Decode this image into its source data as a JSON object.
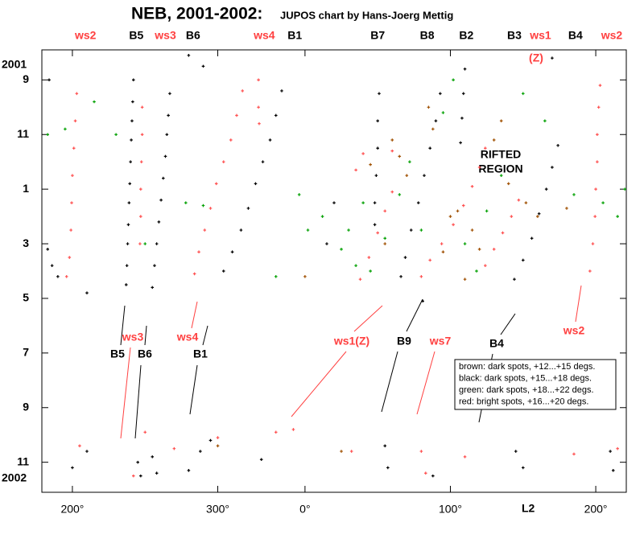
{
  "chart_data": {
    "type": "scatter",
    "title": "NEB, 2001-2002:",
    "subtitle": "JUPOS chart by Hans-Joerg Mettig",
    "x_label": "L2",
    "xlim": [
      179,
      581
    ],
    "xticks": [
      {
        "value": 200,
        "label": "200°"
      },
      {
        "value": 300,
        "label": "300°"
      },
      {
        "value": 360,
        "label": "0°"
      },
      {
        "value": 460,
        "label": "100°"
      },
      {
        "value": 560,
        "label": "200°"
      }
    ],
    "ylim": [
      24.1,
      7.9
    ],
    "yticks": [
      9,
      11,
      {
        "value": 13,
        "label": "1"
      },
      {
        "value": 15,
        "label": "3"
      },
      {
        "value": 17,
        "label": "5"
      },
      {
        "value": 19,
        "label": "7"
      },
      {
        "value": 21,
        "label": "9"
      },
      {
        "value": 23,
        "label": "11"
      }
    ],
    "year_labels": [
      {
        "value": 8.45,
        "label": "2001"
      },
      {
        "value": 23.6,
        "label": "2002"
      }
    ],
    "top_labels": [
      {
        "label": "ws2",
        "x": 209,
        "color": "#ff4040"
      },
      {
        "label": "B5",
        "x": 244,
        "color": "#000000"
      },
      {
        "label": "ws3",
        "x": 264,
        "color": "#ff4040"
      },
      {
        "label": "B6",
        "x": 283,
        "color": "#000000"
      },
      {
        "label": "ws4",
        "x": 332,
        "color": "#ff4040"
      },
      {
        "label": "B1",
        "x": 353,
        "color": "#000000"
      },
      {
        "label": "B7",
        "x": 410,
        "color": "#000000"
      },
      {
        "label": "B8",
        "x": 444,
        "color": "#000000"
      },
      {
        "label": "B2",
        "x": 471,
        "color": "#000000"
      },
      {
        "label": "B3",
        "x": 504,
        "color": "#000000"
      },
      {
        "label": "ws1",
        "x": 522,
        "color": "#ff4040"
      },
      {
        "label": "B4",
        "x": 546,
        "color": "#000000"
      },
      {
        "label": "ws2",
        "x": 571,
        "color": "#ff4040"
      }
    ],
    "top_note": {
      "label": "(Z)",
      "color": "#ff4040"
    },
    "region_label": [
      "RIFTED",
      "REGION"
    ],
    "annotations": [
      {
        "label": "ws3",
        "color": "#ff4040"
      },
      {
        "label": "B5",
        "color": "#000000"
      },
      {
        "label": "B6",
        "color": "#000000"
      },
      {
        "label": "ws4",
        "color": "#ff4040"
      },
      {
        "label": "B1",
        "color": "#000000"
      },
      {
        "label": "ws1(Z)",
        "color": "#ff4040"
      },
      {
        "label": "B9",
        "color": "#000000"
      },
      {
        "label": "ws7",
        "color": "#ff4040"
      },
      {
        "label": "B4",
        "color": "#000000"
      },
      {
        "label": "ws2",
        "color": "#ff4040"
      }
    ],
    "legend": "lower-right",
    "series": [
      {
        "name": "brown:  dark spots,  +12...+15 degs.",
        "color": "#a05000",
        "x": [
          420,
          425,
          430,
          445,
          448,
          460,
          465,
          475,
          480,
          490,
          495,
          500,
          512,
          520,
          405,
          415,
          360,
          540,
          455,
          470,
          300,
          385
        ],
        "y": [
          11.2,
          11.8,
          12.5,
          10,
          10.8,
          14,
          13.8,
          14.5,
          15.2,
          11.2,
          10.5,
          12.8,
          13.5,
          14,
          12.1,
          15,
          16.2,
          13.7,
          15.3,
          16.3,
          22.4,
          22.6
        ]
      },
      {
        "name": "black:   dark spots,  +15...+18 degs.",
        "color": "#000000",
        "x": [
          242,
          241.5,
          241,
          240.5,
          240,
          239.5,
          239,
          238.5,
          238,
          237.5,
          237,
          267,
          266,
          265,
          264,
          262.5,
          261,
          259.5,
          258,
          256.5,
          255,
          344,
          340,
          336,
          331,
          326,
          321,
          316,
          310,
          304,
          411,
          410,
          410,
          409,
          408,
          408,
          453,
          450,
          446,
          442,
          438,
          433,
          429,
          426,
          470,
          469,
          468,
          467,
          534,
          530,
          526,
          521,
          516,
          510,
          504,
          441,
          183,
          186,
          190,
          210,
          375,
          380,
          200,
          210,
          245,
          247,
          255,
          258,
          280,
          288,
          295,
          330,
          415,
          417,
          448,
          505,
          510,
          570,
          572,
          184,
          290,
          280,
          530
        ],
        "y": [
          9,
          9.8,
          10.5,
          11.2,
          12,
          12.8,
          13.5,
          14.3,
          15,
          15.8,
          16.5,
          9.5,
          10.3,
          11,
          11.8,
          12.6,
          13.4,
          14.2,
          15,
          15.8,
          16.6,
          9.4,
          10.3,
          11.2,
          12,
          12.8,
          13.7,
          14.5,
          15.3,
          16,
          9.5,
          10.5,
          11.5,
          12.5,
          13.5,
          14.3,
          9.5,
          10.5,
          11.5,
          12.5,
          13.5,
          14.5,
          15.5,
          16.2,
          8.6,
          9.5,
          10.4,
          11.3,
          11.4,
          12.2,
          13,
          13.9,
          14.8,
          15.6,
          16.3,
          17.1,
          15.2,
          15.8,
          16.2,
          16.8,
          15,
          13.5,
          23.2,
          22.6,
          23,
          23.5,
          22.8,
          23.4,
          23.3,
          22.6,
          22.2,
          22.9,
          22.4,
          23.2,
          23.5,
          22.6,
          23.2,
          22.6,
          23.3,
          9,
          8.5,
          8.1,
          8.2
        ]
      },
      {
        "name": "green:  dark spots,  +18...+22 degs.",
        "color": "#00a000",
        "x": [
          183,
          195,
          215,
          230,
          278,
          290,
          356,
          362,
          372,
          385,
          390,
          400,
          395,
          405,
          415,
          425,
          432,
          440,
          455,
          462,
          470,
          478,
          485,
          495,
          510,
          525,
          545,
          565,
          575,
          340,
          250,
          580
        ],
        "y": [
          11,
          10.8,
          9.8,
          11,
          13.5,
          13.6,
          13.2,
          14.5,
          14,
          15.2,
          14.5,
          13.5,
          15.8,
          16,
          14.8,
          13.2,
          12,
          14.5,
          10.2,
          9,
          15,
          16,
          13.8,
          12.5,
          9.5,
          10.5,
          13.2,
          13.5,
          14,
          16.2,
          15,
          13
        ]
      },
      {
        "name": "red:  bright spots,  +16...+20 degs.",
        "color": "#ff5050",
        "x": [
          203,
          202,
          201,
          200,
          199.5,
          199,
          198,
          196,
          248,
          248,
          247.5,
          247,
          247,
          246.5,
          317,
          313,
          309,
          304,
          299,
          295,
          291,
          287,
          284,
          328,
          328,
          328.5,
          484,
          480,
          475,
          469,
          462,
          454,
          446,
          440,
          420,
          415,
          410,
          404,
          398,
          507,
          502,
          496,
          490,
          484,
          563,
          562,
          561,
          561,
          560,
          559.5,
          558,
          556,
          395,
          400,
          420,
          205,
          242,
          250,
          270,
          300,
          340,
          352,
          392,
          440,
          443,
          470,
          545,
          575
        ],
        "y": [
          9.5,
          10.5,
          11.5,
          12.5,
          13.5,
          14.5,
          15.5,
          16.2,
          10,
          11,
          12,
          13,
          14,
          15,
          9.4,
          10.3,
          11.2,
          12,
          12.8,
          13.7,
          14.5,
          15.3,
          16.1,
          9,
          10,
          10.6,
          11.5,
          12.2,
          12.9,
          13.6,
          14.3,
          15,
          15.6,
          16.2,
          13.1,
          13.8,
          14.6,
          15.5,
          16.3,
          13.4,
          14,
          14.6,
          15.2,
          15.8,
          9.2,
          10,
          11,
          12,
          13,
          14,
          15,
          16,
          12.3,
          11.7,
          11.6,
          22.4,
          23.5,
          21.9,
          22.5,
          22.1,
          21.9,
          21.8,
          22.6,
          22.6,
          23.4,
          22.8,
          22.7,
          22.5
        ]
      }
    ]
  }
}
